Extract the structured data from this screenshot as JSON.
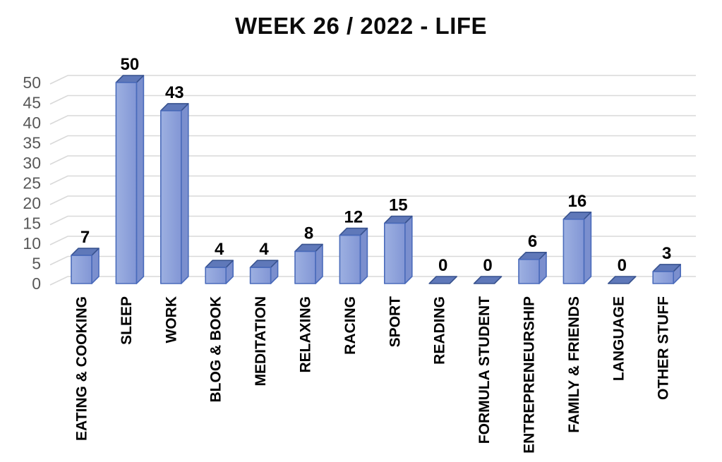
{
  "chart_data": {
    "type": "bar",
    "style": "3d-column",
    "title": "WEEK 26 / 2022 - LIFE",
    "categories": [
      "EATING & COOKING",
      "SLEEP",
      "WORK",
      "BLOG & BOOK",
      "MEDITATION",
      "RELAXING",
      "RACING",
      "SPORT",
      "READING",
      "FORMULA STUDENT",
      "ENTREPRENEURSHIP",
      "FAMILY & FRIENDS",
      "LANGUAGE",
      "OTHER STUFF"
    ],
    "values": [
      7,
      50,
      43,
      4,
      4,
      8,
      12,
      15,
      0,
      0,
      6,
      16,
      0,
      3
    ],
    "data_labels": [
      7,
      50,
      43,
      4,
      4,
      8,
      12,
      15,
      0,
      0,
      6,
      16,
      0,
      3
    ],
    "xlabel": "",
    "ylabel": "",
    "ylim": [
      0,
      50
    ],
    "yticks": [
      0,
      5,
      10,
      15,
      20,
      25,
      30,
      35,
      40,
      45,
      50
    ],
    "grid": true,
    "legend": "none",
    "colors": {
      "bar_front_light": "#9DB0E1",
      "bar_front_dark": "#8296D5",
      "bar_top": "#5F78B9",
      "bar_side": "#7B8FCE",
      "bar_border": "#4A6BBB",
      "bar_top_border": "#39538F",
      "gridline": "#D9D9D9",
      "tick_label": "#595959",
      "data_label": "#000000",
      "title": "#0B0B0B",
      "background": "#FFFFFF"
    }
  }
}
